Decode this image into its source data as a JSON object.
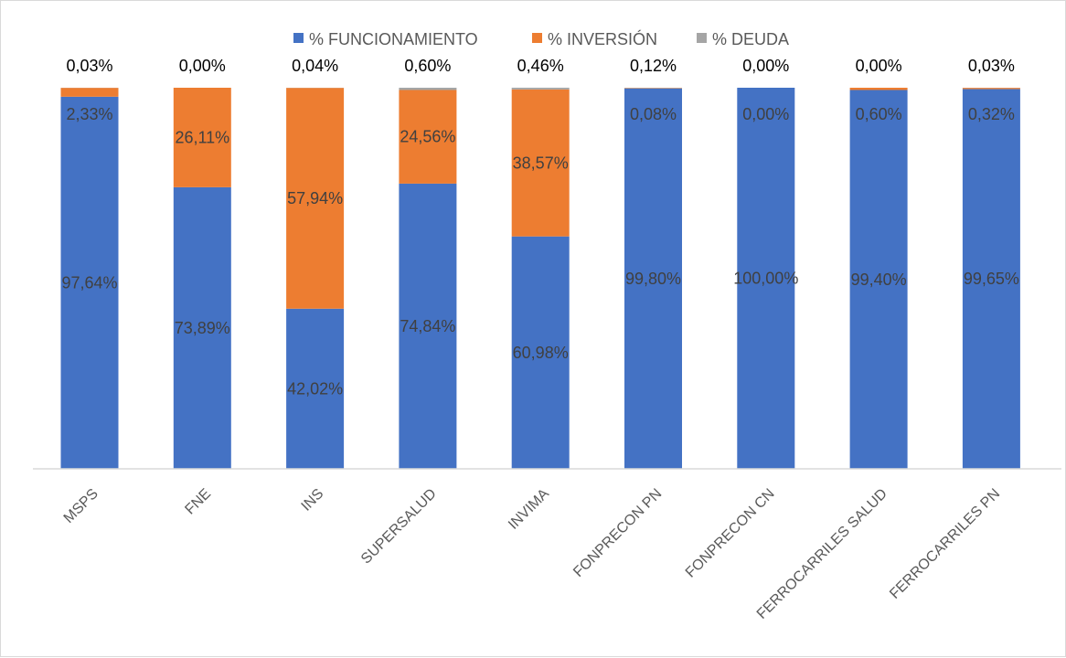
{
  "chart_data": {
    "type": "bar",
    "stacked": true,
    "normalized_percent": true,
    "categories": [
      "MSPS",
      "FNE",
      "INS",
      "SUPERSALUD",
      "INVIMA",
      "FONPRECON PN",
      "FONPRECON CN",
      "FERROCARRILES SALUD",
      "FERROCARRILES PN"
    ],
    "series": [
      {
        "name": "% FUNCIONAMIENTO",
        "color": "#4472c4",
        "values": [
          97.64,
          73.89,
          42.02,
          74.84,
          60.98,
          99.8,
          100.0,
          99.4,
          99.65
        ],
        "labels": [
          "97,64%",
          "73,89%",
          "42,02%",
          "74,84%",
          "60,98%",
          "99,80%",
          "100,00%",
          "99,40%",
          "99,65%"
        ]
      },
      {
        "name": "% INVERSIÓN",
        "color": "#ed7d31",
        "values": [
          2.33,
          26.11,
          57.94,
          24.56,
          38.57,
          0.08,
          0.0,
          0.6,
          0.32
        ],
        "labels": [
          "2,33%",
          "26,11%",
          "57,94%",
          "24,56%",
          "38,57%",
          "0,08%",
          "0,00%",
          "0,60%",
          "0,32%"
        ]
      },
      {
        "name": "% DEUDA",
        "color": "#a5a5a5",
        "values": [
          0.03,
          0.0,
          0.04,
          0.6,
          0.46,
          0.12,
          0.0,
          0.0,
          0.03
        ],
        "labels": [
          "0,03%",
          "0,00%",
          "0,04%",
          "0,60%",
          "0,46%",
          "0,12%",
          "0,00%",
          "0,00%",
          "0,03%"
        ]
      }
    ],
    "ylim": [
      0,
      100
    ],
    "grid": false,
    "legend_position": "top"
  }
}
